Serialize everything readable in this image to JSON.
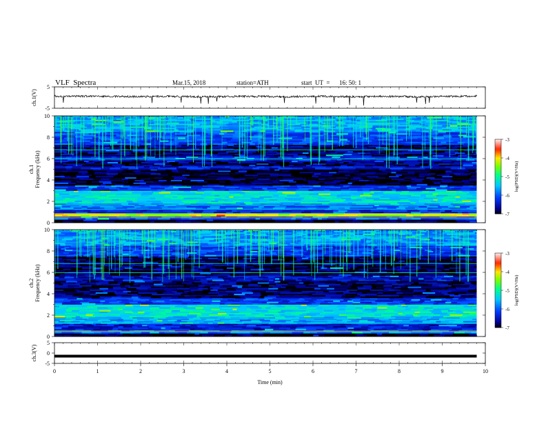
{
  "header": {
    "title": "VLF  Spectra",
    "date": "Mar.15, 2018",
    "station": "station=ATH",
    "start_label": "start  UT  =",
    "start_time": "16: 50: 1"
  },
  "chart_data": [
    {
      "type": "line",
      "ylabel": "ch.1(V)",
      "xlim": [
        0,
        10
      ],
      "ylim": [
        -5,
        5
      ],
      "y_ticks": [
        "5",
        "-5"
      ],
      "x": [
        0,
        0.1,
        0.5,
        1,
        1.5,
        2,
        2.5,
        3,
        3.5,
        4,
        4.5,
        5,
        5.5,
        6,
        6.5,
        7,
        7.5,
        8,
        8.5,
        9,
        9.5,
        9.8
      ],
      "y": [
        0.8,
        0.5,
        0.7,
        0.6,
        0.5,
        0.4,
        0.6,
        0.5,
        0.4,
        0.5,
        0.6,
        0.5,
        0.4,
        0.6,
        0.5,
        0.4,
        0.6,
        0.5,
        0.4,
        0.5,
        0.6,
        0.8
      ],
      "color": "#000000"
    },
    {
      "type": "heatmap",
      "ylabel": "ch.1\nFrequency (kHz)",
      "xlim": [
        0,
        10
      ],
      "ylim": [
        0,
        10
      ],
      "y_ticks": [
        "0",
        "2",
        "4",
        "6",
        "8",
        "10"
      ],
      "colorbar": {
        "label": "log(PSD)(V²/Hz)",
        "ticks": [
          "-3",
          "-4",
          "-5",
          "-6",
          "-7"
        ],
        "range": [
          -7,
          -3
        ]
      },
      "data_x_end": 9.8,
      "bands": [
        {
          "f": [
            0,
            0.3
          ],
          "level": -6.9
        },
        {
          "f": [
            0.3,
            0.6
          ],
          "level": -6.0
        },
        {
          "f": [
            0.6,
            0.9
          ],
          "level": -4.2
        },
        {
          "f": [
            0.9,
            1.3
          ],
          "level": -6.3
        },
        {
          "f": [
            1.3,
            1.8
          ],
          "level": -5.9
        },
        {
          "f": [
            1.8,
            3.0
          ],
          "level": -5.3
        },
        {
          "f": [
            3.0,
            3.5
          ],
          "level": -6.2
        },
        {
          "f": [
            3.5,
            5.0
          ],
          "level": -6.95
        },
        {
          "f": [
            5.0,
            5.3
          ],
          "level": -6.4
        },
        {
          "f": [
            5.3,
            5.8
          ],
          "level": -6.8
        },
        {
          "f": [
            5.8,
            6.2
          ],
          "level": -6.3
        },
        {
          "f": [
            6.2,
            7.3
          ],
          "level": -6.75
        },
        {
          "f": [
            7.3,
            8.5
          ],
          "level": -6.1
        },
        {
          "f": [
            8.5,
            10.0
          ],
          "level": -5.6
        }
      ],
      "feature": {
        "t": [
          6.3,
          6.7
        ],
        "f": 6.3,
        "level": -5.0
      }
    },
    {
      "type": "heatmap",
      "ylabel": "ch.2\nFrequency (kHz)",
      "xlim": [
        0,
        10
      ],
      "ylim": [
        0,
        10
      ],
      "y_ticks": [
        "0",
        "2",
        "4",
        "6",
        "8",
        "10"
      ],
      "colorbar": {
        "label": "log(PSD)(V²/Hz)",
        "ticks": [
          "-3",
          "-4",
          "-5",
          "-6",
          "-7"
        ],
        "range": [
          -7,
          -3
        ]
      },
      "data_x_end": 9.8,
      "bands": [
        {
          "f": [
            0,
            0.3
          ],
          "level": -6.9
        },
        {
          "f": [
            0.3,
            0.6
          ],
          "level": -5.8
        },
        {
          "f": [
            0.6,
            1.2
          ],
          "level": -6.4
        },
        {
          "f": [
            1.2,
            1.8
          ],
          "level": -5.7
        },
        {
          "f": [
            1.8,
            3.0
          ],
          "level": -5.3
        },
        {
          "f": [
            3.0,
            3.6
          ],
          "level": -6.2
        },
        {
          "f": [
            3.6,
            5.2
          ],
          "level": -6.8
        },
        {
          "f": [
            5.2,
            5.7
          ],
          "level": -6.5
        },
        {
          "f": [
            5.7,
            6.2
          ],
          "level": -6.9
        },
        {
          "f": [
            6.2,
            7.5
          ],
          "level": -6.85
        },
        {
          "f": [
            7.5,
            8.5
          ],
          "level": -6.2
        },
        {
          "f": [
            8.5,
            10.0
          ],
          "level": -5.7
        }
      ],
      "feature": {
        "t": [
          6.4,
          6.7
        ],
        "f": 6.4,
        "level": -5.0
      }
    },
    {
      "type": "line",
      "ylabel": "ch.3(V)",
      "xlabel": "Time  (min)",
      "xlim": [
        0,
        10
      ],
      "ylim": [
        -5,
        5
      ],
      "y_ticks": [
        "5",
        "0",
        "-5"
      ],
      "x_ticks": [
        "0",
        "1",
        "2",
        "3",
        "4",
        "5",
        "6",
        "7",
        "8",
        "9",
        "10"
      ],
      "x": [
        0,
        9.8
      ],
      "y": [
        -1.5,
        -1.5
      ],
      "color": "#000000"
    }
  ],
  "colors": {
    "frame": "#000000",
    "background": "#ffffff"
  }
}
